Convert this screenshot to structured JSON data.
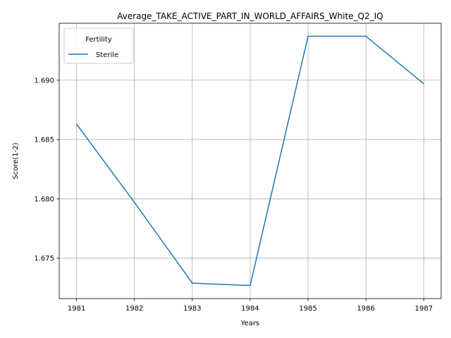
{
  "chart_data": {
    "type": "line",
    "title": "Average_TAKE_ACTIVE_PART_IN_WORLD_AFFAIRS_White_Q2_IQ",
    "xlabel": "Years",
    "ylabel": "Score(1-2)",
    "x": [
      1981,
      1982,
      1983,
      1984,
      1985,
      1986,
      1987
    ],
    "x_tick_labels": [
      "1981",
      "1982",
      "1983",
      "1984",
      "1985",
      "1986",
      "1987"
    ],
    "y_ticks": [
      1.675,
      1.68,
      1.685,
      1.69
    ],
    "y_tick_labels": [
      "1.675",
      "1.680",
      "1.685",
      "1.690"
    ],
    "xlim": [
      1980.7,
      1987.3
    ],
    "ylim": [
      1.6716,
      1.6948
    ],
    "grid": true,
    "legend": {
      "title": "Fertility",
      "placement": "top-left"
    },
    "series": [
      {
        "name": "Sterile",
        "color": "#1f77b4",
        "values": [
          1.6863,
          1.6797,
          1.6729,
          1.6727,
          1.6937,
          1.6937,
          1.6897
        ]
      }
    ]
  }
}
